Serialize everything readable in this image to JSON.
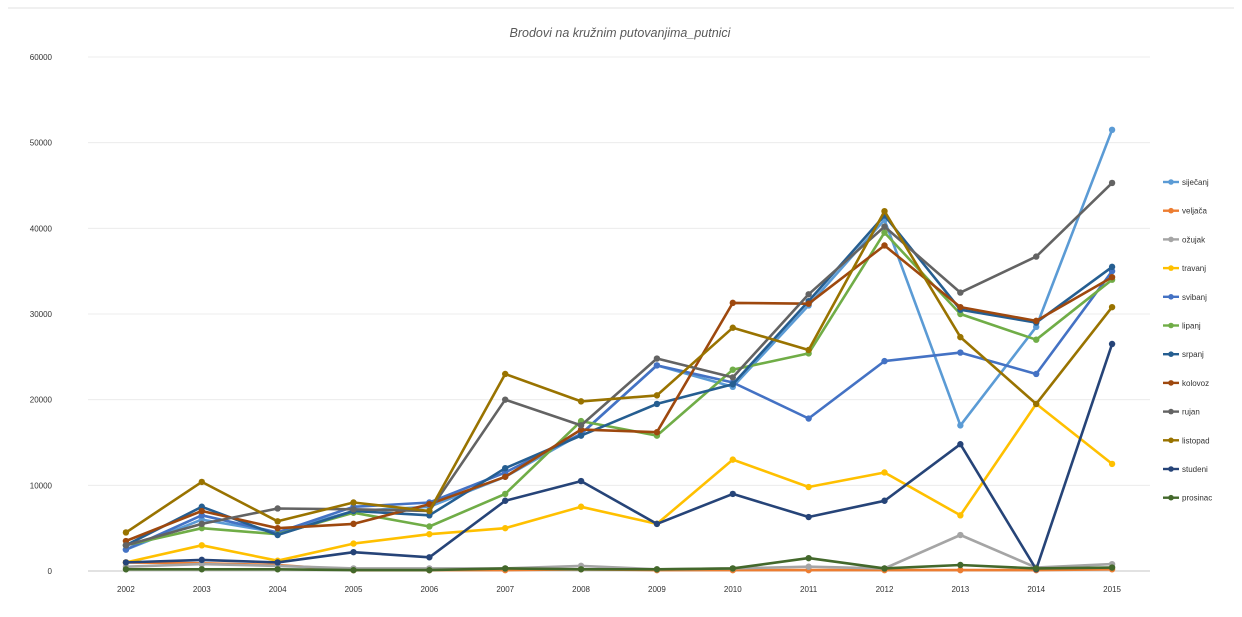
{
  "chart_data": {
    "type": "line",
    "title": "Brodovi na kružnim putovanjima_putnici",
    "xlabel": "",
    "ylabel": "",
    "x": [
      "2002",
      "2003",
      "2004",
      "2005",
      "2006",
      "2007",
      "2008",
      "2009",
      "2010",
      "2011",
      "2012",
      "2013",
      "2014",
      "2015"
    ],
    "ylim": [
      0,
      60000
    ],
    "yticks": [
      0,
      10000,
      20000,
      30000,
      40000,
      50000,
      60000
    ],
    "grid": true,
    "legend_position": "right",
    "series": [
      {
        "name": "siječanj",
        "color": "#5B9BD5",
        "values": [
          2500,
          6000,
          4500,
          7000,
          7500,
          11000,
          16000,
          24000,
          21500,
          31000,
          41000,
          17000,
          28500,
          51500
        ]
      },
      {
        "name": "veljača",
        "color": "#ED7D31",
        "values": [
          1000,
          900,
          700,
          100,
          100,
          100,
          200,
          100,
          100,
          100,
          100,
          100,
          100,
          200
        ]
      },
      {
        "name": "ožujak",
        "color": "#A5A5A5",
        "values": [
          500,
          800,
          600,
          300,
          300,
          300,
          600,
          200,
          300,
          500,
          300,
          4200,
          400,
          800
        ]
      },
      {
        "name": "travanj",
        "color": "#FFC000",
        "values": [
          1000,
          3000,
          1200,
          3200,
          4300,
          5000,
          7500,
          5500,
          13000,
          9800,
          11500,
          6500,
          19500,
          12500
        ]
      },
      {
        "name": "svibanj",
        "color": "#4472C4",
        "values": [
          2500,
          6500,
          4500,
          7500,
          8000,
          11500,
          16000,
          24000,
          22000,
          17800,
          24500,
          25500,
          23000,
          35000
        ]
      },
      {
        "name": "lipanj",
        "color": "#70AD47",
        "values": [
          3000,
          5000,
          4300,
          6800,
          5200,
          9000,
          17500,
          15800,
          23500,
          25400,
          39500,
          30000,
          27000,
          34000
        ]
      },
      {
        "name": "srpanj",
        "color": "#255E91",
        "values": [
          3000,
          7500,
          4200,
          7000,
          6500,
          12000,
          15800,
          19500,
          21800,
          31500,
          41500,
          30500,
          29000,
          35500
        ]
      },
      {
        "name": "kolovoz",
        "color": "#9E480E",
        "values": [
          3500,
          7000,
          5000,
          5500,
          7800,
          11000,
          16500,
          16200,
          31300,
          31200,
          38000,
          30800,
          29200,
          34300
        ]
      },
      {
        "name": "rujan",
        "color": "#636363",
        "values": [
          3000,
          5500,
          7300,
          7200,
          7000,
          20000,
          17000,
          24800,
          22600,
          32300,
          40200,
          32500,
          36700,
          45300
        ]
      },
      {
        "name": "listopad",
        "color": "#997300",
        "values": [
          4500,
          10400,
          5800,
          8000,
          7000,
          23000,
          19800,
          20500,
          28400,
          25800,
          42000,
          27300,
          19500,
          30800
        ]
      },
      {
        "name": "studeni",
        "color": "#264478",
        "values": [
          1000,
          1300,
          1000,
          2200,
          1600,
          8200,
          10500,
          5500,
          9000,
          6300,
          8200,
          14800,
          200,
          26500
        ]
      },
      {
        "name": "prosinac",
        "color": "#43682B",
        "values": [
          200,
          200,
          200,
          100,
          100,
          300,
          200,
          200,
          300,
          1500,
          300,
          700,
          300,
          400
        ]
      }
    ]
  }
}
